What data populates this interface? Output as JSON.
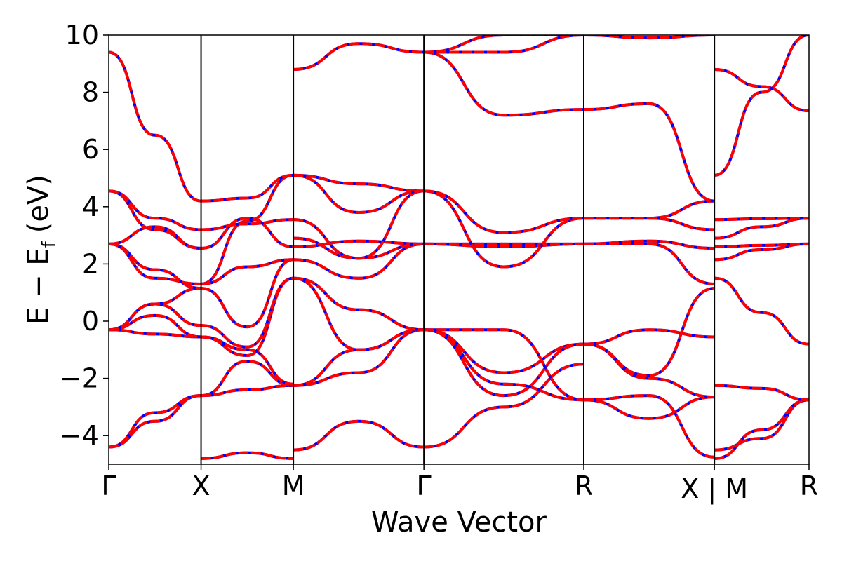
{
  "chart_data": {
    "type": "line",
    "xlabel": "Wave Vector",
    "ylabel": "E − E",
    "ylabel_subscript": "f",
    "ylabel_unit": "(eV)",
    "ylim": [
      -5,
      10
    ],
    "xlim": [
      0,
      7.586
    ],
    "grid": false,
    "y_ticks": [
      -4,
      -2,
      0,
      2,
      4,
      6,
      8,
      10
    ],
    "y_tick_labels": [
      "−4",
      "−2",
      "0",
      "2",
      "4",
      "6",
      "8",
      "10"
    ],
    "high_symmetry_points": [
      {
        "label": "Γ",
        "x": 0
      },
      {
        "label": "X",
        "x": 1.0
      },
      {
        "label": "M",
        "x": 2.0
      },
      {
        "label": "Γ",
        "x": 3.414
      },
      {
        "label": "R",
        "x": 5.146
      },
      {
        "label": "X | M",
        "x": 6.561
      },
      {
        "label": "R",
        "x": 7.586
      }
    ],
    "series_styles": {
      "series_a": {
        "color": "#0000ff",
        "style": "solid"
      },
      "series_b": {
        "color": "#ff0000",
        "style": "dashed"
      }
    },
    "segments": [
      {
        "x0": 0,
        "x1": 1.0,
        "bands": [
          [
            -4.4,
            -3.5,
            -2.6
          ],
          [
            -4.4,
            -3.2,
            -2.6
          ],
          [
            -0.3,
            -0.45,
            -0.55
          ],
          [
            -0.3,
            0.2,
            -0.55
          ],
          [
            -0.3,
            0.6,
            -0.15
          ],
          [
            -0.3,
            0.6,
            1.15
          ],
          [
            2.7,
            1.8,
            1.15
          ],
          [
            2.7,
            1.5,
            1.3
          ],
          [
            2.7,
            3.3,
            2.55
          ],
          [
            4.55,
            3.2,
            2.55
          ],
          [
            4.55,
            3.6,
            3.2
          ],
          [
            9.4,
            6.5,
            4.2
          ]
        ]
      },
      {
        "x0": 1.0,
        "x1": 2.0,
        "bands": [
          [
            -4.8,
            -4.6,
            -4.8
          ],
          [
            -2.6,
            -2.4,
            -2.25
          ],
          [
            -2.6,
            -1.4,
            -2.25
          ],
          [
            -0.55,
            -1.0,
            -2.2
          ],
          [
            -0.55,
            -1.2,
            1.5
          ],
          [
            -0.15,
            -0.9,
            1.5
          ],
          [
            1.15,
            -0.2,
            2.15
          ],
          [
            1.3,
            1.9,
            2.15
          ],
          [
            1.3,
            3.5,
            5.1
          ],
          [
            2.55,
            3.6,
            2.6
          ],
          [
            3.2,
            3.4,
            3.55
          ],
          [
            4.2,
            4.3,
            5.1
          ]
        ]
      },
      {
        "x0": 2.0,
        "x1": 3.414,
        "bands": [
          [
            -4.5,
            -3.5,
            -4.4
          ],
          [
            -2.25,
            -1.8,
            -0.3
          ],
          [
            -2.25,
            -1.0,
            -0.3
          ],
          [
            1.5,
            -1.0,
            -0.3
          ],
          [
            1.5,
            0.4,
            -0.3
          ],
          [
            2.15,
            1.5,
            2.7
          ],
          [
            2.6,
            2.8,
            2.7
          ],
          [
            2.9,
            2.2,
            2.7
          ],
          [
            3.55,
            2.2,
            4.55
          ],
          [
            5.1,
            4.8,
            4.55
          ],
          [
            5.1,
            3.8,
            4.55
          ],
          [
            8.8,
            9.7,
            9.4
          ]
        ]
      },
      {
        "x0": 3.414,
        "x1": 5.146,
        "bands": [
          [
            -4.4,
            -3.0,
            -1.5
          ],
          [
            -0.3,
            -1.8,
            -0.8
          ],
          [
            -0.3,
            -0.3,
            -2.75
          ],
          [
            -0.3,
            -2.2,
            -2.75
          ],
          [
            -0.3,
            -2.6,
            -0.8
          ],
          [
            2.7,
            2.7,
            2.7
          ],
          [
            2.7,
            2.6,
            2.7
          ],
          [
            4.55,
            1.9,
            3.6
          ],
          [
            4.55,
            3.1,
            3.6
          ],
          [
            9.4,
            7.2,
            7.4
          ],
          [
            9.4,
            10.0,
            10.0
          ],
          [
            9.4,
            9.4,
            10.0
          ]
        ]
      },
      {
        "x0": 5.146,
        "x1": 6.561,
        "bands": [
          [
            -2.75,
            -3.4,
            -2.65
          ],
          [
            -2.75,
            -2.6,
            -4.75
          ],
          [
            -0.8,
            -2.0,
            -2.65
          ],
          [
            -0.8,
            -0.3,
            -0.55
          ],
          [
            -0.8,
            -1.9,
            1.15
          ],
          [
            2.7,
            2.7,
            1.3
          ],
          [
            2.7,
            2.8,
            2.55
          ],
          [
            3.6,
            3.6,
            3.2
          ],
          [
            3.6,
            3.6,
            4.2
          ],
          [
            7.4,
            7.6,
            4.2
          ],
          [
            10.0,
            9.9,
            10.0
          ]
        ]
      },
      {
        "x0": 6.561,
        "x1": 7.586,
        "bands": [
          [
            -4.5,
            -4.1,
            -2.75
          ],
          [
            -4.8,
            -3.8,
            -2.75
          ],
          [
            -2.25,
            -2.35,
            -2.75
          ],
          [
            1.5,
            0.3,
            -0.8
          ],
          [
            2.15,
            2.5,
            2.7
          ],
          [
            2.6,
            2.65,
            2.7
          ],
          [
            2.9,
            3.3,
            3.6
          ],
          [
            3.55,
            3.58,
            3.6
          ],
          [
            5.1,
            8.0,
            10.0
          ],
          [
            8.8,
            8.2,
            7.35
          ]
        ]
      }
    ]
  }
}
